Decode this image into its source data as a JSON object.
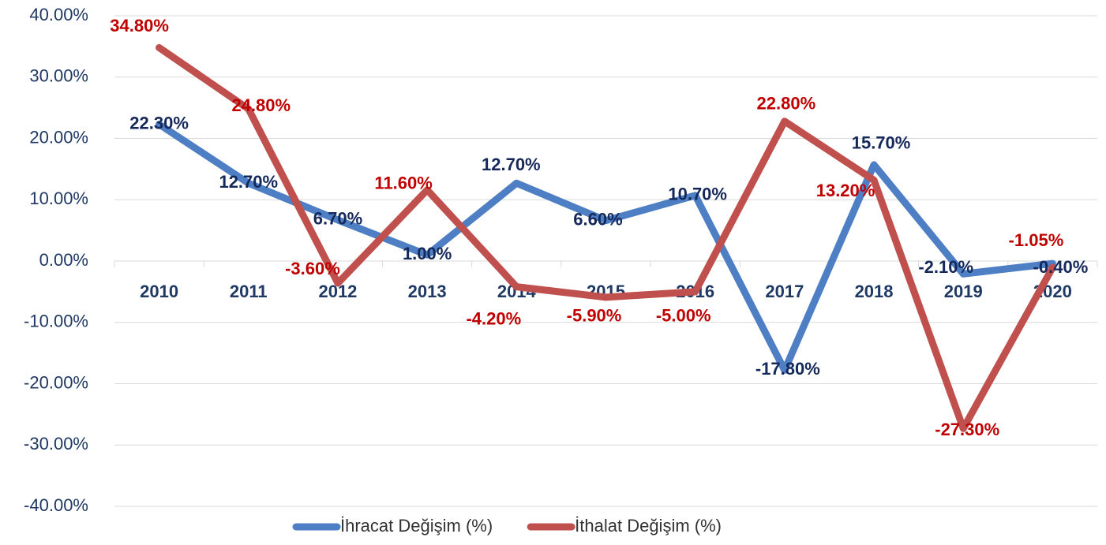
{
  "chart_data": {
    "type": "line",
    "categories": [
      "2010",
      "2011",
      "2012",
      "2013",
      "2014",
      "2015",
      "2016",
      "2017",
      "2018",
      "2019",
      "2020"
    ],
    "series": [
      {
        "name": "İhracat Değişim (%)",
        "color": "#4e7fc4",
        "values": [
          22.3,
          12.7,
          6.7,
          1.0,
          12.7,
          6.6,
          10.7,
          -17.8,
          15.7,
          -2.1,
          -0.4
        ],
        "value_labels": [
          "22.30%",
          "12.70%",
          "6.70%",
          "1.00%",
          "12.70%",
          "6.60%",
          "10.70%",
          "-17.80%",
          "15.70%",
          "-2.10%",
          "-0.40%"
        ],
        "label_color": "#14285a"
      },
      {
        "name": "İthalat Değişim (%)",
        "color": "#c0504d",
        "values": [
          34.8,
          24.8,
          -3.6,
          11.6,
          -4.2,
          -5.9,
          -5.0,
          22.8,
          13.2,
          -27.3,
          -1.05
        ],
        "value_labels": [
          "34.80%",
          "24.80%",
          "-3.60%",
          "11.60%",
          "-4.20%",
          "-5.90%",
          "-5.00%",
          "22.80%",
          "13.20%",
          "-27.30%",
          "-1.05%"
        ],
        "label_color": "#c00000"
      }
    ],
    "ylim": [
      -40,
      40
    ],
    "yticks": [
      {
        "value": -40,
        "label": "-40.00%"
      },
      {
        "value": -30,
        "label": "-30.00%"
      },
      {
        "value": -20,
        "label": "-20.00%"
      },
      {
        "value": -10,
        "label": "-10.00%"
      },
      {
        "value": 0,
        "label": "0.00%"
      },
      {
        "value": 10,
        "label": "10.00%"
      },
      {
        "value": 20,
        "label": "20.00%"
      },
      {
        "value": 30,
        "label": "30.00%"
      },
      {
        "value": 40,
        "label": "40.00%"
      }
    ],
    "grid": true,
    "legend": "bottom"
  }
}
